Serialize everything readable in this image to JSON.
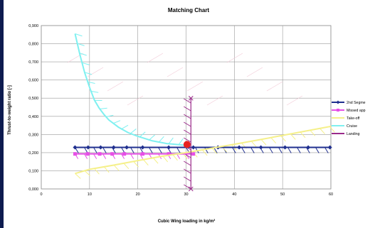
{
  "colors": {
    "segment2": "#1f2f8f",
    "missed": "#e64fe6",
    "takeoff": "#f5f08a",
    "cruise": "#7ff0f0",
    "landing": "#9a2a8a",
    "design_point": "#e8221f",
    "hatch_faint": "#f2c9d6",
    "frame": "#0d1b4f"
  },
  "chart_data": {
    "type": "line",
    "title": "Matching Chart",
    "xlabel": "Cubic Wing loading in kg/m³",
    "ylabel": "Thrust-to-weight ratio [-]",
    "xlim": [
      0,
      60
    ],
    "ylim": [
      0,
      0.9
    ],
    "x_ticks": [
      0,
      10,
      20,
      30,
      40,
      50,
      60
    ],
    "y_ticks": [
      {
        "v": 0.0,
        "label": "0,000"
      },
      {
        "v": 0.1,
        "label": "0,100"
      },
      {
        "v": 0.2,
        "label": "0,200"
      },
      {
        "v": 0.3,
        "label": "0,300"
      },
      {
        "v": 0.4,
        "label": "0,400"
      },
      {
        "v": 0.5,
        "label": "0,500"
      },
      {
        "v": 0.6,
        "label": "0,600"
      },
      {
        "v": 0.7,
        "label": "0,700"
      },
      {
        "v": 0.8,
        "label": "0,800"
      },
      {
        "v": 0.9,
        "label": "0,900"
      }
    ],
    "grid": true,
    "legend_position": "right",
    "series": [
      {
        "name": "2nd Segme",
        "color": "#1f2f8f",
        "marker": "diamond",
        "x": [
          7,
          9.7,
          12.3,
          15,
          17.7,
          21,
          26.4,
          31.5,
          36.6,
          41,
          45.5,
          50.5,
          55.3,
          59.8
        ],
        "y": [
          0.229,
          0.229,
          0.229,
          0.229,
          0.229,
          0.229,
          0.229,
          0.229,
          0.229,
          0.229,
          0.229,
          0.229,
          0.229,
          0.229
        ]
      },
      {
        "name": "Missed app",
        "color": "#e64fe6",
        "marker": "square",
        "x": [
          7,
          9.6,
          12.1,
          14.7,
          17.2,
          21,
          26.4,
          31.5
        ],
        "y": [
          0.193,
          0.193,
          0.193,
          0.193,
          0.193,
          0.193,
          0.193,
          0.193
        ]
      },
      {
        "name": "Take-off",
        "color": "#f5f08a",
        "marker": "none",
        "x": [
          7,
          10,
          15,
          20,
          25,
          30,
          35,
          40,
          45,
          50,
          55,
          60
        ],
        "y": [
          0.085,
          0.108,
          0.131,
          0.156,
          0.18,
          0.2,
          0.223,
          0.246,
          0.27,
          0.295,
          0.32,
          0.345
        ]
      },
      {
        "name": "Cruise",
        "color": "#7ff0f0",
        "marker": "none",
        "x": [
          7,
          8,
          9,
          10,
          11,
          12,
          13,
          14,
          16,
          18,
          20,
          23,
          26,
          30
        ],
        "y": [
          0.855,
          0.74,
          0.64,
          0.56,
          0.49,
          0.445,
          0.41,
          0.38,
          0.34,
          0.31,
          0.29,
          0.265,
          0.25,
          0.24
        ]
      },
      {
        "name": "Landing",
        "color": "#9a2a8a",
        "marker": "none",
        "x": [
          31,
          31
        ],
        "y": [
          0.0,
          0.5
        ]
      }
    ],
    "design_point": {
      "x": 30.2,
      "y": 0.245
    }
  }
}
